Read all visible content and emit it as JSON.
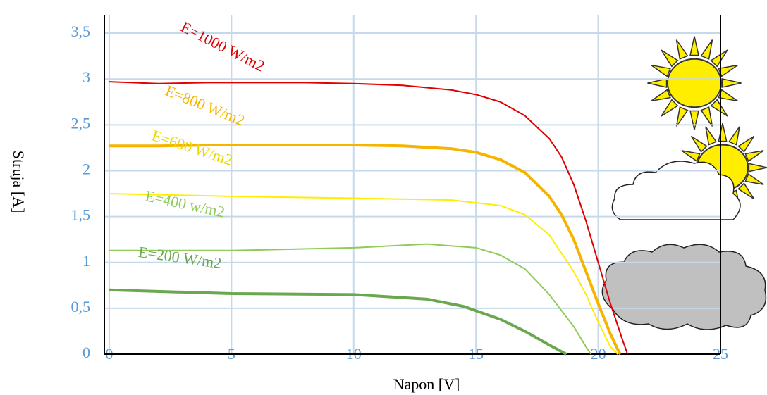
{
  "chart_data": {
    "type": "line",
    "x_label": "Napon [V]",
    "y_label": "Struja [A]",
    "xlim": [
      -0.2,
      25
    ],
    "ylim": [
      0,
      3.7
    ],
    "xticks": [
      0,
      5,
      10,
      15,
      20,
      25
    ],
    "yticks": [
      0,
      {
        "value": 0.5,
        "label": "0,5"
      },
      1,
      {
        "value": 1.5,
        "label": "1,5"
      },
      2,
      {
        "value": 2.5,
        "label": "2,5"
      },
      3,
      {
        "value": 3.5,
        "label": "3,5"
      }
    ],
    "grid": true,
    "series": [
      {
        "name": "E=1000 W/m2",
        "color": "#e00000",
        "linewidth": 2,
        "x": [
          0,
          2,
          4,
          6,
          8,
          10,
          12,
          14,
          15,
          16,
          17,
          18,
          18.5,
          19,
          19.5,
          20,
          20.5,
          21,
          21.2
        ],
        "values": [
          2.97,
          2.95,
          2.96,
          2.96,
          2.96,
          2.95,
          2.93,
          2.88,
          2.83,
          2.75,
          2.6,
          2.35,
          2.15,
          1.85,
          1.45,
          1.0,
          0.55,
          0.15,
          0
        ]
      },
      {
        "name": "E=800 W/m2",
        "color": "#f5b400",
        "linewidth": 4,
        "x": [
          0,
          2,
          4,
          6,
          8,
          10,
          12,
          14,
          15,
          16,
          17,
          18,
          18.5,
          19,
          19.5,
          20,
          20.5,
          20.8,
          20.9
        ],
        "values": [
          2.27,
          2.27,
          2.28,
          2.28,
          2.28,
          2.28,
          2.27,
          2.24,
          2.2,
          2.12,
          1.98,
          1.72,
          1.52,
          1.25,
          0.9,
          0.55,
          0.22,
          0.05,
          0
        ]
      },
      {
        "name": "E=600 W/m2",
        "color": "#ffee00",
        "linewidth": 2,
        "x": [
          0,
          5,
          10,
          14,
          16,
          17,
          18,
          19,
          19.5,
          20,
          20.5,
          20.8
        ],
        "values": [
          1.75,
          1.72,
          1.7,
          1.68,
          1.62,
          1.52,
          1.3,
          0.9,
          0.65,
          0.35,
          0.08,
          0
        ]
      },
      {
        "name": "E=400 w/m2",
        "color": "#8fca5a",
        "linewidth": 2,
        "x": [
          0,
          5,
          10,
          13,
          15,
          16,
          17,
          18,
          19,
          19.5,
          19.7
        ],
        "values": [
          1.13,
          1.13,
          1.16,
          1.2,
          1.16,
          1.08,
          0.93,
          0.65,
          0.3,
          0.08,
          0
        ]
      },
      {
        "name": "E=200 W/m2",
        "color": "#6aa84f",
        "linewidth": 4,
        "x": [
          0,
          5,
          10,
          13,
          14.5,
          16,
          17,
          18,
          18.7
        ],
        "values": [
          0.7,
          0.66,
          0.65,
          0.6,
          0.52,
          0.38,
          0.25,
          0.1,
          0
        ]
      }
    ]
  }
}
